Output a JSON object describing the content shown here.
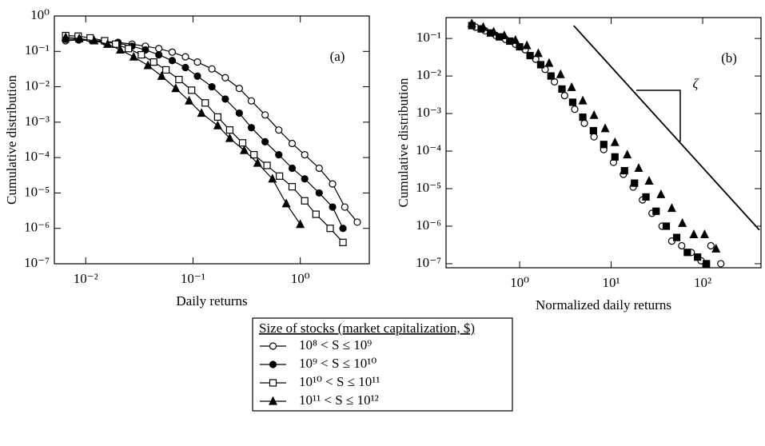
{
  "chart_data": [
    {
      "type": "line",
      "x_label": "Daily returns",
      "y_label": "Cumulative distribution",
      "panel_label": "(a)",
      "log_x": true,
      "log_y": true,
      "xlim": [
        0.0051,
        4.4
      ],
      "ylim": [
        1e-07,
        1
      ],
      "xticks": [
        {
          "value": 0.01,
          "label": "10⁻²"
        },
        {
          "value": 0.1,
          "label": "10⁻¹"
        },
        {
          "value": 1,
          "label": "10⁰"
        }
      ],
      "yticks": [
        {
          "value": 1,
          "label": "10⁰"
        },
        {
          "value": 0.1,
          "label": "10⁻¹"
        },
        {
          "value": 0.01,
          "label": "10⁻²"
        },
        {
          "value": 0.001,
          "label": "10⁻³"
        },
        {
          "value": 0.0001,
          "label": "10⁻⁴"
        },
        {
          "value": 1e-05,
          "label": "10⁻⁵"
        },
        {
          "value": 1e-06,
          "label": "10⁻⁶"
        },
        {
          "value": 1e-07,
          "label": "10⁻⁷"
        }
      ],
      "legend_title": "Size of stocks (market capitalization, $)",
      "series": [
        {
          "name": "10⁸ < S ≤ 10⁹",
          "marker": "open-circle",
          "color": "#000000",
          "x": [
            0.0065,
            0.0086,
            0.0115,
            0.015,
            0.02,
            0.027,
            0.036,
            0.048,
            0.064,
            0.085,
            0.11,
            0.15,
            0.2,
            0.27,
            0.35,
            0.47,
            0.63,
            0.84,
            1.1,
            1.5,
            2.0,
            2.6,
            3.4
          ],
          "values": [
            0.2,
            0.21,
            0.2,
            0.19,
            0.18,
            0.16,
            0.14,
            0.12,
            0.095,
            0.07,
            0.05,
            0.032,
            0.018,
            0.009,
            0.004,
            0.0016,
            0.0006,
            0.00025,
            0.00012,
            5e-05,
            1.8e-05,
            4e-06,
            1.5e-06
          ]
        },
        {
          "name": "10⁹ < S ≤ 10¹⁰",
          "marker": "filled-circle",
          "color": "#000000",
          "x": [
            0.0065,
            0.0086,
            0.0115,
            0.015,
            0.02,
            0.027,
            0.036,
            0.048,
            0.064,
            0.085,
            0.11,
            0.15,
            0.2,
            0.27,
            0.35,
            0.47,
            0.63,
            0.84,
            1.1,
            1.5,
            2.0,
            2.5
          ],
          "values": [
            0.22,
            0.22,
            0.21,
            0.19,
            0.17,
            0.14,
            0.11,
            0.08,
            0.055,
            0.035,
            0.02,
            0.01,
            0.0045,
            0.0018,
            0.0007,
            0.00028,
            0.00012,
            5e-05,
            2.5e-05,
            1e-05,
            4e-06,
            1e-06
          ]
        },
        {
          "name": "10¹⁰ < S ≤ 10¹¹",
          "marker": "open-square",
          "color": "#000000",
          "x": [
            0.0065,
            0.0085,
            0.011,
            0.015,
            0.019,
            0.025,
            0.033,
            0.043,
            0.056,
            0.074,
            0.097,
            0.13,
            0.17,
            0.22,
            0.29,
            0.37,
            0.49,
            0.64,
            0.84,
            1.1,
            1.4,
            1.9,
            2.5
          ],
          "values": [
            0.28,
            0.27,
            0.24,
            0.2,
            0.16,
            0.12,
            0.08,
            0.05,
            0.03,
            0.016,
            0.008,
            0.0035,
            0.0014,
            0.0006,
            0.00026,
            0.00012,
            6e-05,
            3e-05,
            1.5e-05,
            6e-06,
            2.5e-06,
            1e-06,
            4e-07
          ]
        },
        {
          "name": "10¹¹ < S ≤ 10¹²",
          "marker": "filled-triangle",
          "color": "#000000",
          "x": [
            0.0065,
            0.0087,
            0.012,
            0.016,
            0.021,
            0.028,
            0.038,
            0.051,
            0.069,
            0.092,
            0.12,
            0.17,
            0.22,
            0.3,
            0.4,
            0.55,
            0.74,
            1.0
          ],
          "values": [
            0.25,
            0.23,
            0.2,
            0.16,
            0.11,
            0.07,
            0.04,
            0.02,
            0.009,
            0.004,
            0.0018,
            0.0008,
            0.00035,
            0.00016,
            7e-05,
            2.5e-05,
            5e-06,
            1.3e-06
          ]
        }
      ]
    },
    {
      "type": "scatter",
      "x_label": "Normalized daily returns",
      "y_label": "Cumulative distribution",
      "panel_label": "(b)",
      "log_x": true,
      "log_y": true,
      "xlim": [
        0.157,
        434
      ],
      "ylim": [
        7.8e-08,
        0.36
      ],
      "xticks": [
        {
          "value": 1,
          "label": "10⁰"
        },
        {
          "value": 10,
          "label": "10¹"
        },
        {
          "value": 100,
          "label": "10²"
        }
      ],
      "yticks": [
        {
          "value": 0.1,
          "label": "10⁻¹"
        },
        {
          "value": 0.01,
          "label": "10⁻²"
        },
        {
          "value": 0.001,
          "label": "10⁻³"
        },
        {
          "value": 0.0001,
          "label": "10⁻⁴"
        },
        {
          "value": 1e-05,
          "label": "10⁻⁵"
        },
        {
          "value": 1e-06,
          "label": "10⁻⁶"
        },
        {
          "value": 1e-07,
          "label": "10⁻⁷"
        }
      ],
      "annotation": "ζ",
      "reference_line": {
        "x": [
          3.9,
          417
        ],
        "values": [
          0.22,
          7.9e-07
        ]
      },
      "series": [
        {
          "marker": "open-circle",
          "color": "#000000",
          "x": [
            0.33,
            0.42,
            0.55,
            0.7,
            0.9,
            1.15,
            1.5,
            1.9,
            2.4,
            3.1,
            4,
            5.1,
            6.5,
            8.3,
            10.6,
            13.6,
            17.4,
            22,
            28,
            36,
            46,
            59,
            75,
            96,
            123,
            158
          ],
          "values": [
            0.2,
            0.16,
            0.12,
            0.095,
            0.07,
            0.05,
            0.028,
            0.015,
            0.007,
            0.003,
            0.0013,
            0.00055,
            0.00024,
            0.00011,
            5e-05,
            2.4e-05,
            1.1e-05,
            5e-06,
            2.2e-06,
            1e-06,
            4e-07,
            3e-07,
            2e-07,
            1.2e-07,
            3e-07,
            1e-07
          ]
        },
        {
          "marker": "filled-square",
          "color": "#000000",
          "x": [
            0.3,
            0.38,
            0.48,
            0.6,
            0.78,
            1.0,
            1.3,
            1.7,
            2.2,
            2.9,
            3.8,
            4.9,
            6.4,
            8.3,
            11,
            14,
            18,
            24,
            31,
            40,
            52,
            68,
            88,
            110
          ],
          "values": [
            0.22,
            0.18,
            0.14,
            0.11,
            0.085,
            0.06,
            0.035,
            0.02,
            0.01,
            0.0045,
            0.002,
            0.0008,
            0.00035,
            0.00015,
            7e-05,
            3e-05,
            1.4e-05,
            6e-06,
            2.5e-06,
            1e-06,
            5e-07,
            2e-07,
            1.5e-07,
            1e-07
          ]
        },
        {
          "marker": "filled-triangle",
          "color": "#000000",
          "x": [
            0.3,
            0.4,
            0.52,
            0.68,
            0.9,
            1.2,
            1.6,
            2.1,
            2.8,
            3.7,
            4.9,
            6.5,
            8.6,
            11,
            15,
            20,
            26,
            35,
            46,
            60,
            80,
            105,
            140
          ],
          "values": [
            0.25,
            0.2,
            0.15,
            0.12,
            0.09,
            0.065,
            0.04,
            0.022,
            0.011,
            0.005,
            0.0022,
            0.0009,
            0.0004,
            0.00017,
            8e-05,
            3.5e-05,
            1.6e-05,
            7e-06,
            3e-06,
            1.2e-06,
            6e-07,
            6e-07,
            2.5e-07
          ]
        }
      ]
    }
  ]
}
